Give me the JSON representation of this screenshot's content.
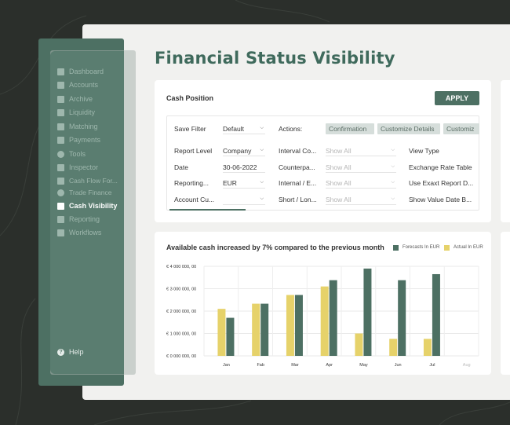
{
  "page": {
    "title": "Financial Status Visibility"
  },
  "sidebar": {
    "items": [
      {
        "label": "Dashboard",
        "icon": "dashboard-icon"
      },
      {
        "label": "Accounts",
        "icon": "accounts-icon"
      },
      {
        "label": "Archive",
        "icon": "archive-icon"
      },
      {
        "label": "Liquidity",
        "icon": "liquidity-icon"
      },
      {
        "label": "Matching",
        "icon": "matching-icon"
      },
      {
        "label": "Payments",
        "icon": "payments-icon"
      },
      {
        "label": "Tools",
        "icon": "gear-icon"
      },
      {
        "label": "Inspector",
        "icon": "inspector-icon"
      },
      {
        "label": "Cash Flow For...",
        "icon": "cash-flow-icon"
      },
      {
        "label": "Trade Finance",
        "icon": "globe-icon"
      },
      {
        "label": "Cash Visibility",
        "icon": "cash-visibility-icon"
      },
      {
        "label": "Reporting",
        "icon": "reporting-icon"
      },
      {
        "label": "Workflows",
        "icon": "workflows-icon"
      }
    ],
    "active": "Cash Visibility",
    "help_label": "Help"
  },
  "cash_position": {
    "title": "Cash Position",
    "apply_label": "APPLY",
    "save_filter_label": "Save Filter",
    "save_filter_value": "Default",
    "actions_label": "Actions:",
    "actions": [
      "Confirmation",
      "Customize Details",
      "Customiz"
    ],
    "rows": [
      {
        "label": "Report Level",
        "value": "Company",
        "label2": "Interval Co...",
        "value2": "Show All",
        "label3": "View Type"
      },
      {
        "label": "Date",
        "value": "30-06-2022",
        "label2": "Counterpa...",
        "value2": "Show All",
        "label3": "Exchange Rate Table"
      },
      {
        "label": "Reporting...",
        "value": "EUR",
        "label2": "Internal / E...",
        "value2": "Show All",
        "label3": "Use Exaxt Report D..."
      },
      {
        "label": "Account Cu...",
        "value": "",
        "label2": "Short / Lon...",
        "value2": "Show All",
        "label3": "Show Value Date B..."
      }
    ]
  },
  "colors": {
    "accent": "#4d7063",
    "actual": "#e6d26a",
    "forecast": "#4d7063"
  },
  "chart_data": {
    "type": "bar",
    "title": "Available cash increased by 7% compared to the previous month",
    "categories": [
      "Jan",
      "Fab",
      "Mar",
      "Apr",
      "May",
      "Jun",
      "Jul",
      "Aug"
    ],
    "series": [
      {
        "name": "Actual In EUR",
        "values": [
          2100000,
          2330000,
          2720000,
          3100000,
          1000000,
          760000,
          760000,
          null
        ]
      },
      {
        "name": "Forecasts In EUR",
        "values": [
          1700000,
          2330000,
          2720000,
          3380000,
          3900000,
          3380000,
          3650000,
          null
        ]
      }
    ],
    "legend_order": [
      "Forecasts In EUR",
      "Actual In EUR"
    ],
    "legend_position": "top-right",
    "yticks": [
      "€ 0 000 000, 00",
      "€ 1 000 000, 00",
      "€ 2 000 000, 00",
      "€ 3 000 000, 00",
      "€ 4 000 000, 00"
    ],
    "ylim": [
      0,
      4000000
    ],
    "grid": true
  }
}
